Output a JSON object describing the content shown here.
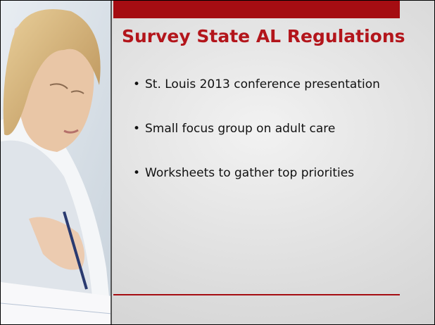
{
  "slide": {
    "title": "Survey State AL Regulations",
    "bullets": [
      "St. Louis 2013 conference presentation",
      "Small focus group on adult care",
      "Worksheets to gather top priorities"
    ]
  }
}
